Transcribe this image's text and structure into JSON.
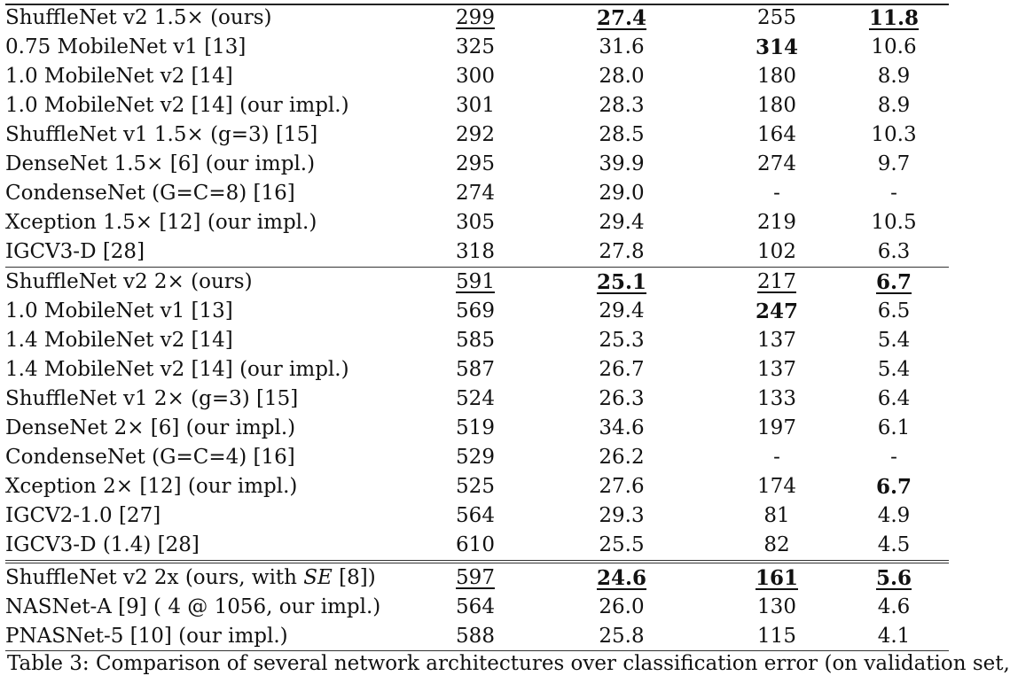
{
  "table": {
    "groups": [
      {
        "rows": [
          {
            "name": "ShuffleNet v2 1.5× (ours)",
            "c1": "299",
            "c2": "27.4",
            "c3": "255",
            "c4": "11.8",
            "fmt": [
              "u",
              "bu",
              "",
              "bu"
            ]
          },
          {
            "name": "0.75 MobileNet v1 [13]",
            "c1": "325",
            "c2": "31.6",
            "c3": "314",
            "c4": "10.6",
            "fmt": [
              "",
              "",
              "b",
              ""
            ]
          },
          {
            "name": "1.0 MobileNet v2 [14]",
            "c1": "300",
            "c2": "28.0",
            "c3": "180",
            "c4": "8.9",
            "fmt": [
              "",
              "",
              "",
              ""
            ]
          },
          {
            "name": "1.0 MobileNet v2 [14] (our impl.)",
            "c1": "301",
            "c2": "28.3",
            "c3": "180",
            "c4": "8.9",
            "fmt": [
              "",
              "",
              "",
              ""
            ]
          },
          {
            "name": "ShuffleNet v1 1.5× (g=3) [15]",
            "c1": "292",
            "c2": "28.5",
            "c3": "164",
            "c4": "10.3",
            "fmt": [
              "",
              "",
              "",
              ""
            ]
          },
          {
            "name": "DenseNet 1.5× [6] (our impl.)",
            "c1": "295",
            "c2": "39.9",
            "c3": "274",
            "c4": "9.7",
            "fmt": [
              "",
              "",
              "",
              ""
            ]
          },
          {
            "name": "CondenseNet (G=C=8) [16]",
            "c1": "274",
            "c2": "29.0",
            "c3": "-",
            "c4": "-",
            "fmt": [
              "",
              "",
              "",
              ""
            ]
          },
          {
            "name": "Xception 1.5× [12] (our impl.)",
            "c1": "305",
            "c2": "29.4",
            "c3": "219",
            "c4": "10.5",
            "fmt": [
              "",
              "",
              "",
              ""
            ]
          },
          {
            "name": "IGCV3-D [28]",
            "c1": "318",
            "c2": "27.8",
            "c3": "102",
            "c4": "6.3",
            "fmt": [
              "",
              "",
              "",
              ""
            ]
          }
        ]
      },
      {
        "rows": [
          {
            "name": "ShuffleNet v2 2× (ours)",
            "c1": "591",
            "c2": "25.1",
            "c3": "217",
            "c4": "6.7",
            "fmt": [
              "u",
              "bu",
              "u",
              "bu"
            ]
          },
          {
            "name": "1.0 MobileNet v1 [13]",
            "c1": "569",
            "c2": "29.4",
            "c3": "247",
            "c4": "6.5",
            "fmt": [
              "",
              "",
              "b",
              ""
            ]
          },
          {
            "name": "1.4 MobileNet v2 [14]",
            "c1": "585",
            "c2": "25.3",
            "c3": "137",
            "c4": "5.4",
            "fmt": [
              "",
              "",
              "",
              ""
            ]
          },
          {
            "name": "1.4 MobileNet v2 [14] (our impl.)",
            "c1": "587",
            "c2": "26.7",
            "c3": "137",
            "c4": "5.4",
            "fmt": [
              "",
              "",
              "",
              ""
            ]
          },
          {
            "name": "ShuffleNet v1 2× (g=3) [15]",
            "c1": "524",
            "c2": "26.3",
            "c3": "133",
            "c4": "6.4",
            "fmt": [
              "",
              "",
              "",
              ""
            ]
          },
          {
            "name": "DenseNet 2× [6] (our impl.)",
            "c1": "519",
            "c2": "34.6",
            "c3": "197",
            "c4": "6.1",
            "fmt": [
              "",
              "",
              "",
              ""
            ]
          },
          {
            "name": "CondenseNet (G=C=4) [16]",
            "c1": "529",
            "c2": "26.2",
            "c3": "-",
            "c4": "-",
            "fmt": [
              "",
              "",
              "",
              ""
            ]
          },
          {
            "name": "Xception 2× [12] (our impl.)",
            "c1": "525",
            "c2": "27.6",
            "c3": "174",
            "c4": "6.7",
            "fmt": [
              "",
              "",
              "",
              "b"
            ]
          },
          {
            "name": "IGCV2-1.0 [27]",
            "c1": "564",
            "c2": "29.3",
            "c3": "81",
            "c4": "4.9",
            "fmt": [
              "",
              "",
              "",
              ""
            ]
          },
          {
            "name": "IGCV3-D (1.4) [28]",
            "c1": "610",
            "c2": "25.5",
            "c3": "82",
            "c4": "4.5",
            "fmt": [
              "",
              "",
              "",
              ""
            ]
          }
        ]
      },
      {
        "rows": [
          {
            "name": "ShuffleNet v2 2x (ours, with SE [8])",
            "c1": "597",
            "c2": "24.6",
            "c3": "161",
            "c4": "5.6",
            "fmt": [
              "u",
              "bu",
              "bu",
              "bu"
            ]
          },
          {
            "name": "NASNet-A [9] ( 4 @ 1056, our impl.)",
            "c1": "564",
            "c2": "26.0",
            "c3": "130",
            "c4": "4.6",
            "fmt": [
              "",
              "",
              "",
              ""
            ]
          },
          {
            "name": "PNASNet-5 [10] (our impl.)",
            "c1": "588",
            "c2": "25.8",
            "c3": "115",
            "c4": "4.1",
            "fmt": [
              "",
              "",
              "",
              ""
            ]
          }
        ]
      }
    ]
  },
  "caption": "Table 3: Comparison of several network architectures over classification error (on validation set,"
}
